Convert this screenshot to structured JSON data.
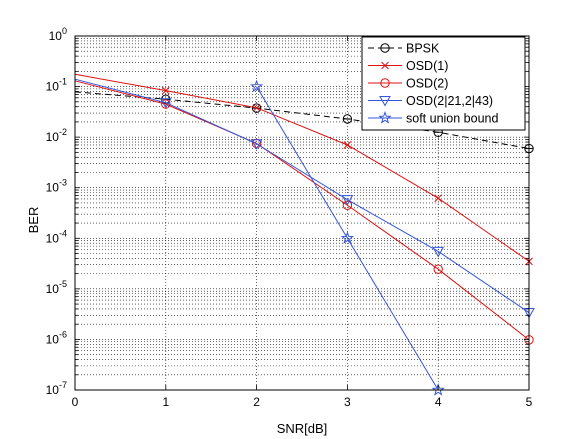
{
  "chart_data": {
    "type": "line",
    "xlabel": "SNR[dB]",
    "ylabel": "BER",
    "xlim": [
      0,
      5
    ],
    "ylim": [
      1e-07,
      1
    ],
    "yscale": "log",
    "grid": true,
    "legend_position": "top-right",
    "x_ticks": [
      "0",
      "1",
      "2",
      "3",
      "4",
      "5"
    ],
    "y_tick_base": "10",
    "y_tick_exponents": [
      "0",
      "-1",
      "-2",
      "-3",
      "-4",
      "-5",
      "-6",
      "-7"
    ],
    "series": [
      {
        "name": "BPSK",
        "color": "#000000",
        "dash": "dashed",
        "marker": "circle-minus",
        "x": [
          0,
          1,
          2,
          3,
          4,
          5
        ],
        "y": [
          0.0786,
          0.0563,
          0.0375,
          0.0229,
          0.0125,
          0.00595
        ],
        "marker_x": [
          1,
          2,
          3,
          4,
          5
        ]
      },
      {
        "name": "OSD(1)",
        "color": "#dd1111",
        "dash": "solid",
        "marker": "x",
        "x": [
          0,
          1,
          2,
          3,
          4,
          5
        ],
        "y": [
          0.175,
          0.083,
          0.038,
          0.007,
          0.00062,
          3.5e-05
        ],
        "marker_x": [
          1,
          2,
          3,
          4,
          5
        ]
      },
      {
        "name": "OSD(2)",
        "color": "#dd1111",
        "dash": "solid",
        "marker": "circle",
        "x": [
          0,
          1,
          2,
          3,
          4,
          5
        ],
        "y": [
          0.13,
          0.045,
          0.0075,
          0.00045,
          2.45e-05,
          9.8e-07
        ],
        "marker_x": [
          1,
          2,
          3,
          4,
          5
        ]
      },
      {
        "name": "OSD(2|21,2|43)",
        "color": "#3355dd",
        "dash": "solid",
        "marker": "triangle-down",
        "x": [
          0,
          1,
          2,
          3,
          4,
          5
        ],
        "y": [
          0.14,
          0.048,
          0.0074,
          0.00058,
          5.5e-05,
          3.4e-06
        ],
        "marker_x": [
          1,
          2,
          3,
          4,
          5
        ]
      },
      {
        "name": "soft union bound",
        "color": "#3355dd",
        "dash": "solid",
        "marker": "star",
        "x": [
          2,
          3,
          4
        ],
        "y": [
          0.1,
          0.0001,
          1e-07
        ],
        "marker_x": [
          2,
          3,
          4
        ]
      }
    ]
  }
}
